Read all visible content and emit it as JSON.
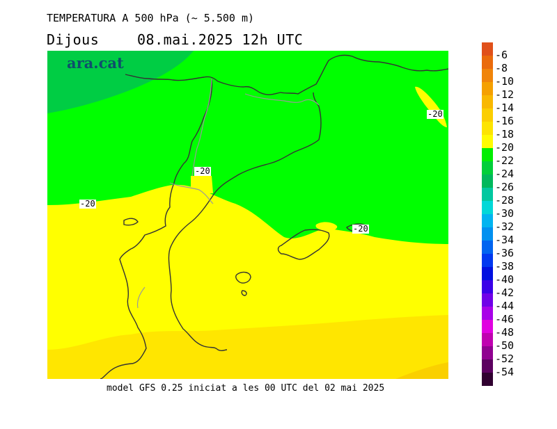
{
  "title": "TEMPERATURA A 500 hPa (~ 5.500 m)",
  "day": "Dijous",
  "datetime": "08.mai.2025 12h UTC",
  "logo": "ara.cat",
  "footer": "model GFS 0.25 iniciat a les 00 UTC del 02 mai 2025",
  "contour_labels": [
    "-20",
    "-20",
    "-20",
    "-20"
  ],
  "legend": {
    "labels": [
      "-6",
      "-8",
      "-10",
      "-12",
      "-14",
      "-16",
      "-18",
      "-20",
      "-22",
      "-24",
      "-26",
      "-28",
      "-30",
      "-32",
      "-34",
      "-36",
      "-38",
      "-40",
      "-42",
      "-44",
      "-46",
      "-48",
      "-50",
      "-52",
      "-54"
    ],
    "colors": [
      "#e0501a",
      "#ea6b0c",
      "#f0840a",
      "#f5a000",
      "#f9b800",
      "#fbce00",
      "#fde400",
      "#fffc00",
      "#00ee00",
      "#00cf3a",
      "#00b85c",
      "#00c8a0",
      "#00d8d8",
      "#00b4f0",
      "#0090f0",
      "#0064f0",
      "#0038f0",
      "#0010e0",
      "#3a00e8",
      "#7000e8",
      "#a800e8",
      "#e000e0",
      "#c000b0",
      "#900090",
      "#5c0060",
      "#300030"
    ],
    "map_colors": {
      "lt_m20": "#00ff00",
      "lt_m22": "#00cd44",
      "m20_m18": "#ffff00",
      "m18_m16": "#ffe600",
      "m16_m14": "#fad000"
    }
  }
}
